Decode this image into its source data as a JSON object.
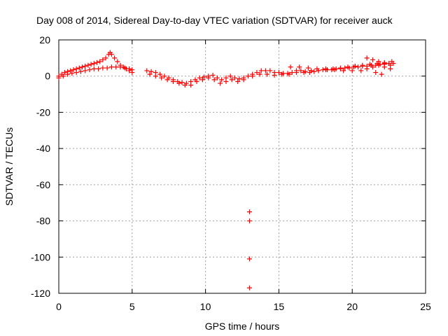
{
  "colors": {
    "series": "#ff0000",
    "grid": "#a0a0a0",
    "axis": "#000000"
  },
  "chart_data": {
    "type": "scatter",
    "title": "Day 008 of 2014, Sidereal Day-to-day VTEC variation (SDTVAR) for receiver auck",
    "xlabel": "GPS time / hours",
    "ylabel": "SDTVAR / TECUs",
    "xlim": [
      0,
      25
    ],
    "ylim": [
      -120,
      20
    ],
    "xticks": [
      0,
      5,
      10,
      15,
      20,
      25
    ],
    "yticks": [
      -120,
      -100,
      -80,
      -60,
      -40,
      -20,
      0,
      20
    ],
    "xtick_labels": [
      "0",
      "5",
      "10",
      "15",
      "20",
      "25"
    ],
    "ytick_labels": [
      "-120",
      "-100",
      "-80",
      "-60",
      "-40",
      "-20",
      "0",
      "20"
    ],
    "grid": true,
    "marker": "plus",
    "series": [
      {
        "name": "SDTVAR",
        "color": "#ff0000",
        "x": [
          0.0,
          0.2,
          0.4,
          0.6,
          0.8,
          1.0,
          1.2,
          1.4,
          1.6,
          1.8,
          2.0,
          2.2,
          2.4,
          2.6,
          2.8,
          3.0,
          3.2,
          3.4,
          3.5,
          3.6,
          3.8,
          4.0,
          4.2,
          4.4,
          4.6,
          4.8,
          5.0,
          0.0,
          0.3,
          0.6,
          0.9,
          1.2,
          1.5,
          1.8,
          2.1,
          2.4,
          2.7,
          3.0,
          3.3,
          3.6,
          3.9,
          4.2,
          4.5,
          4.8,
          5.0,
          6.0,
          6.3,
          6.6,
          6.9,
          7.2,
          7.5,
          7.8,
          8.1,
          8.4,
          8.7,
          9.0,
          9.3,
          9.6,
          9.9,
          10.2,
          10.5,
          10.8,
          11.1,
          11.4,
          11.7,
          12.0,
          12.3,
          12.6,
          12.9,
          6.2,
          6.6,
          7.0,
          7.4,
          7.8,
          8.2,
          8.6,
          9.0,
          9.4,
          9.8,
          10.2,
          10.6,
          11.0,
          11.4,
          11.8,
          12.2,
          12.6,
          13.2,
          13.5,
          13.8,
          14.1,
          14.4,
          14.7,
          15.0,
          15.3,
          15.6,
          15.9,
          16.2,
          16.5,
          16.8,
          17.1,
          17.4,
          17.7,
          18.0,
          18.3,
          18.6,
          18.9,
          19.2,
          19.5,
          19.8,
          20.1,
          20.4,
          20.7,
          21.0,
          21.3,
          21.6,
          21.9,
          22.2,
          22.5,
          22.8,
          13.2,
          13.7,
          14.2,
          14.7,
          15.2,
          15.7,
          16.2,
          16.7,
          17.2,
          17.7,
          18.2,
          18.7,
          19.2,
          19.7,
          20.2,
          20.7,
          21.2,
          21.7,
          22.2,
          22.7,
          15.8,
          16.4,
          17.0,
          17.6,
          18.2,
          18.8,
          19.4,
          20.0,
          20.6,
          21.0,
          21.4,
          21.8,
          22.2,
          22.6,
          21.0,
          21.4,
          21.8,
          22.2,
          22.6,
          22.0,
          21.6,
          13.0,
          13.0,
          13.0,
          13.0
        ],
        "y": [
          0,
          1,
          2,
          2.5,
          3,
          3.5,
          4,
          4.5,
          5,
          5.5,
          6,
          6.5,
          7,
          7.5,
          8,
          9,
          10,
          12,
          13,
          12,
          10,
          8,
          6,
          5,
          4,
          3,
          2,
          -1,
          0,
          1,
          1.5,
          2,
          2.5,
          3,
          3.5,
          4,
          4,
          4.5,
          4.5,
          5,
          5,
          5,
          4.5,
          4,
          3.5,
          3,
          2.5,
          2,
          1,
          0,
          -1,
          -2,
          -3,
          -3.5,
          -4,
          -3,
          -2,
          -1,
          -0.5,
          0,
          0.5,
          -1,
          -2,
          -1,
          0,
          -1,
          -1.5,
          -1,
          0,
          1,
          0,
          -1,
          -2,
          -3,
          -4,
          -5,
          -5,
          -3,
          -2,
          -1,
          -2,
          -4,
          -3,
          -2,
          -3,
          -2,
          1,
          2,
          3,
          3,
          3,
          2,
          2,
          1.5,
          1.5,
          2,
          3,
          3,
          2.5,
          2,
          2.5,
          3,
          3.5,
          3.5,
          3.5,
          4,
          4,
          4.5,
          4.5,
          5,
          5,
          5.5,
          5.5,
          6,
          6,
          6.5,
          6.5,
          7,
          7,
          0,
          1,
          1,
          0.5,
          1,
          1,
          2,
          2,
          3,
          3,
          3.5,
          4,
          4.5,
          5,
          5.5,
          6,
          6.5,
          7,
          7.5,
          8,
          5,
          5,
          4.5,
          4,
          4,
          3.5,
          3,
          3,
          3,
          4,
          5,
          6,
          5,
          4,
          10,
          9,
          8,
          7,
          6,
          1,
          2,
          -75,
          -80,
          -101,
          -117
        ]
      }
    ]
  }
}
